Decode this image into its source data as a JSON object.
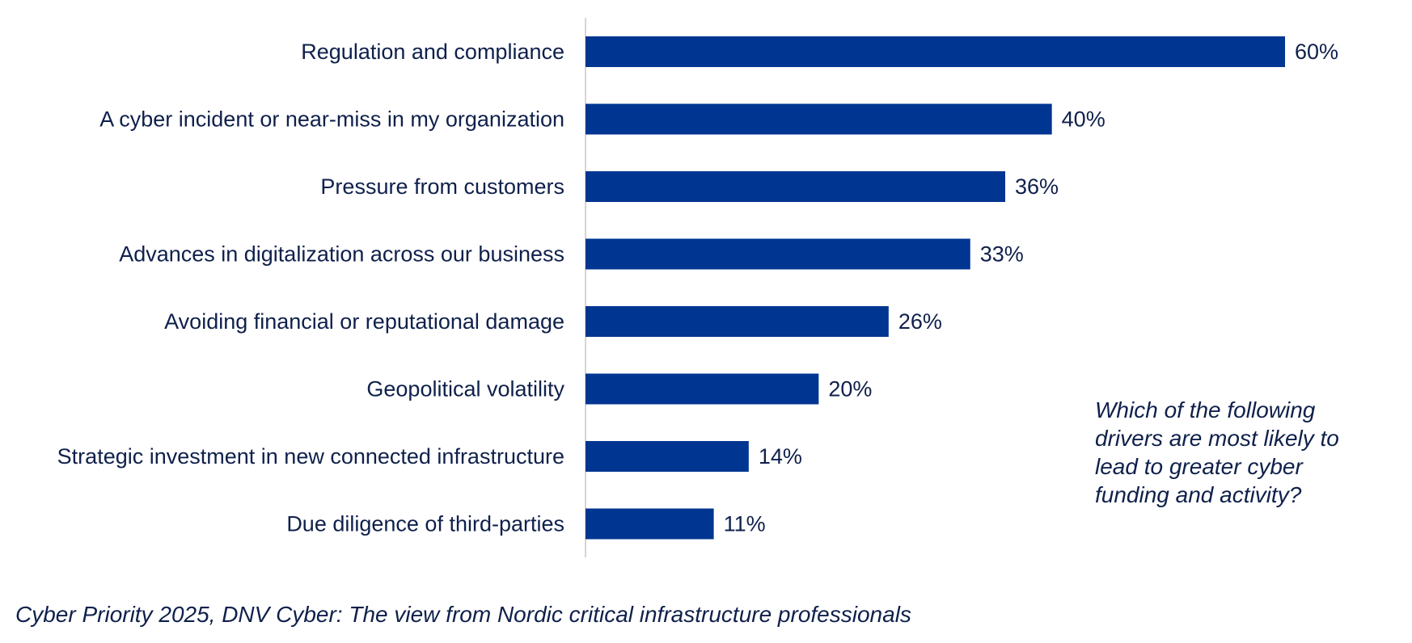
{
  "chart_data": {
    "type": "bar",
    "orientation": "horizontal",
    "categories": [
      "Regulation and compliance",
      "A cyber incident or near-miss in my organization",
      "Pressure from customers",
      "Advances in digitalization across our business",
      "Avoiding financial or reputational damage",
      "Geopolitical volatility",
      "Strategic investment in new connected infrastructure",
      "Due diligence of third-parties"
    ],
    "values": [
      60,
      40,
      36,
      33,
      26,
      20,
      14,
      11
    ],
    "value_labels": [
      "60%",
      "40%",
      "36%",
      "33%",
      "26%",
      "20%",
      "14%",
      "11%"
    ],
    "unit": "%",
    "xlim": [
      0,
      60
    ],
    "grid": false,
    "legend": "none",
    "bar_color": "#003591",
    "axis_color": "#c8c8c8",
    "text_color": "#0f204b"
  },
  "question": "Which of the following drivers are most likely to lead to greater cyber funding and activity?",
  "source": "Cyber Priority 2025, DNV Cyber: The view from Nordic critical infrastructure professionals"
}
